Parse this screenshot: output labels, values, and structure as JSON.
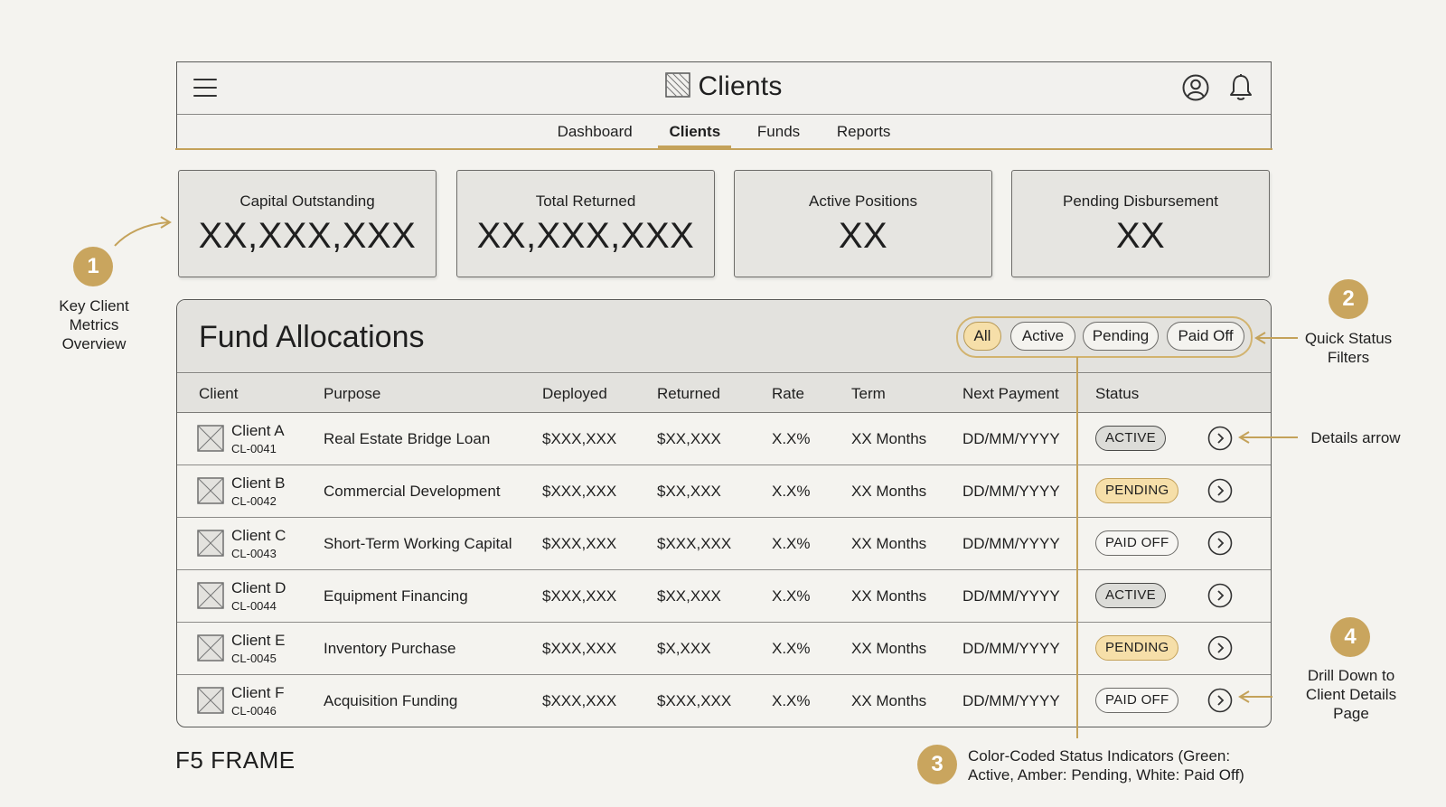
{
  "app": {
    "title": "Clients"
  },
  "nav": {
    "tabs": [
      "Dashboard",
      "Clients",
      "Funds",
      "Reports"
    ],
    "active": "Clients"
  },
  "metrics": [
    {
      "label": "Capital Outstanding",
      "value": "XX,XXX,XXX"
    },
    {
      "label": "Total Returned",
      "value": "XX,XXX,XXX"
    },
    {
      "label": "Active Positions",
      "value": "XX"
    },
    {
      "label": "Pending Disbursement",
      "value": "XX"
    }
  ],
  "allocations": {
    "title": "Fund Allocations",
    "filters": [
      "All",
      "Active",
      "Pending",
      "Paid Off"
    ],
    "selected_filter": "All",
    "columns": [
      "Client",
      "Purpose",
      "Deployed",
      "Returned",
      "Rate",
      "Term",
      "Next Payment",
      "Status"
    ],
    "rows": [
      {
        "client": "Client A",
        "id": "CL-0041",
        "purpose": "Real Estate Bridge Loan",
        "deployed": "$XXX,XXX",
        "returned": "$XX,XXX",
        "rate": "X.X%",
        "term": "XX Months",
        "next": "DD/MM/YYYY",
        "status": "ACTIVE"
      },
      {
        "client": "Client B",
        "id": "CL-0042",
        "purpose": "Commercial Development",
        "deployed": "$XXX,XXX",
        "returned": "$XX,XXX",
        "rate": "X.X%",
        "term": "XX Months",
        "next": "DD/MM/YYYY",
        "status": "PENDING"
      },
      {
        "client": "Client C",
        "id": "CL-0043",
        "purpose": "Short-Term Working Capital",
        "deployed": "$XXX,XXX",
        "returned": "$XXX,XXX",
        "rate": "X.X%",
        "term": "XX Months",
        "next": "DD/MM/YYYY",
        "status": "PAID OFF"
      },
      {
        "client": "Client D",
        "id": "CL-0044",
        "purpose": "Equipment Financing",
        "deployed": "$XXX,XXX",
        "returned": "$XX,XXX",
        "rate": "X.X%",
        "term": "XX Months",
        "next": "DD/MM/YYYY",
        "status": "ACTIVE"
      },
      {
        "client": "Client E",
        "id": "CL-0045",
        "purpose": "Inventory Purchase",
        "deployed": "$XXX,XXX",
        "returned": "$X,XXX",
        "rate": "X.X%",
        "term": "XX Months",
        "next": "DD/MM/YYYY",
        "status": "PENDING"
      },
      {
        "client": "Client F",
        "id": "CL-0046",
        "purpose": "Acquisition Funding",
        "deployed": "$XXX,XXX",
        "returned": "$XXX,XXX",
        "rate": "X.X%",
        "term": "XX Months",
        "next": "DD/MM/YYYY",
        "status": "PAID OFF"
      }
    ]
  },
  "annotations": {
    "m1": {
      "number": "1",
      "text": "Key Client Metrics Overview"
    },
    "m2": {
      "number": "2",
      "text": "Quick Status Filters"
    },
    "m3": {
      "number": "3",
      "text": "Color-Coded Status Indicators (Green: Active, Amber: Pending, White: Paid Off)"
    },
    "m4": {
      "number": "4",
      "text": "Drill Down to Client Details Page"
    },
    "details": "Details arrow",
    "frame": "F5 FRAME"
  },
  "colors": {
    "accent": "#c4a25a",
    "pending": "#f6dfa9",
    "active": "#dcdcd8",
    "paid_off": "#f7f6f3"
  },
  "icons": [
    "menu-icon",
    "logo-icon",
    "user-icon",
    "bell-icon",
    "avatar-placeholder-icon",
    "chevron-right-icon"
  ]
}
